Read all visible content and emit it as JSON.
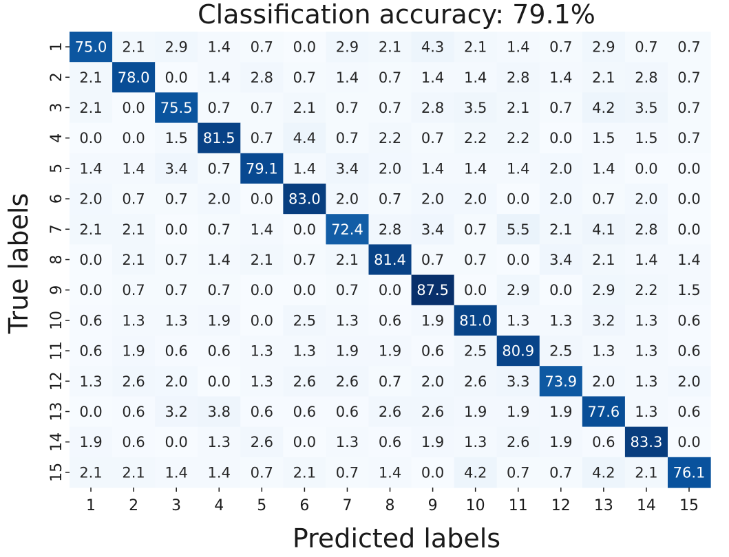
{
  "chart_data": {
    "type": "heatmap",
    "title": "Classification accuracy: 79.1%",
    "xlabel": "Predicted labels",
    "ylabel": "True labels",
    "x_categories": [
      "1",
      "2",
      "3",
      "4",
      "5",
      "6",
      "7",
      "8",
      "9",
      "10",
      "11",
      "12",
      "13",
      "14",
      "15"
    ],
    "y_categories": [
      "1",
      "2",
      "3",
      "4",
      "5",
      "6",
      "7",
      "8",
      "9",
      "10",
      "11",
      "12",
      "13",
      "14",
      "15"
    ],
    "colormap": "Blues",
    "color_low": "#f7fbff",
    "color_high": "#08306b",
    "vmin": 0,
    "vmax": 87.5,
    "values": [
      [
        "75.0",
        "2.1",
        "2.9",
        "1.4",
        "0.7",
        "0.0",
        "2.9",
        "2.1",
        "4.3",
        "2.1",
        "1.4",
        "0.7",
        "2.9",
        "0.7",
        "0.7"
      ],
      [
        "2.1",
        "78.0",
        "0.0",
        "1.4",
        "2.8",
        "0.7",
        "1.4",
        "0.7",
        "1.4",
        "1.4",
        "2.8",
        "1.4",
        "2.1",
        "2.8",
        "0.7"
      ],
      [
        "2.1",
        "0.0",
        "75.5",
        "0.7",
        "0.7",
        "2.1",
        "0.7",
        "0.7",
        "2.8",
        "3.5",
        "2.1",
        "0.7",
        "4.2",
        "3.5",
        "0.7"
      ],
      [
        "0.0",
        "0.0",
        "1.5",
        "81.5",
        "0.7",
        "4.4",
        "0.7",
        "2.2",
        "0.7",
        "2.2",
        "2.2",
        "0.0",
        "1.5",
        "1.5",
        "0.7"
      ],
      [
        "1.4",
        "1.4",
        "3.4",
        "0.7",
        "79.1",
        "1.4",
        "3.4",
        "2.0",
        "1.4",
        "1.4",
        "1.4",
        "2.0",
        "1.4",
        "0.0",
        "0.0"
      ],
      [
        "2.0",
        "0.7",
        "0.7",
        "2.0",
        "0.0",
        "83.0",
        "2.0",
        "0.7",
        "2.0",
        "2.0",
        "0.0",
        "2.0",
        "0.7",
        "2.0",
        "0.0"
      ],
      [
        "2.1",
        "2.1",
        "0.0",
        "0.7",
        "1.4",
        "0.0",
        "72.4",
        "2.8",
        "3.4",
        "0.7",
        "5.5",
        "2.1",
        "4.1",
        "2.8",
        "0.0"
      ],
      [
        "0.0",
        "2.1",
        "0.7",
        "1.4",
        "2.1",
        "0.7",
        "2.1",
        "81.4",
        "0.7",
        "0.7",
        "0.0",
        "3.4",
        "2.1",
        "1.4",
        "1.4"
      ],
      [
        "0.0",
        "0.7",
        "0.7",
        "0.7",
        "0.0",
        "0.0",
        "0.7",
        "0.0",
        "87.5",
        "0.0",
        "2.9",
        "0.0",
        "2.9",
        "2.2",
        "1.5"
      ],
      [
        "0.6",
        "1.3",
        "1.3",
        "1.9",
        "0.0",
        "2.5",
        "1.3",
        "0.6",
        "1.9",
        "81.0",
        "1.3",
        "1.3",
        "3.2",
        "1.3",
        "0.6"
      ],
      [
        "0.6",
        "1.9",
        "0.6",
        "0.6",
        "1.3",
        "1.3",
        "1.9",
        "1.9",
        "0.6",
        "2.5",
        "80.9",
        "2.5",
        "1.3",
        "1.3",
        "0.6"
      ],
      [
        "1.3",
        "2.6",
        "2.0",
        "0.0",
        "1.3",
        "2.6",
        "2.6",
        "0.7",
        "2.0",
        "2.6",
        "3.3",
        "73.9",
        "2.0",
        "1.3",
        "2.0"
      ],
      [
        "0.0",
        "0.6",
        "3.2",
        "3.8",
        "0.6",
        "0.6",
        "0.6",
        "2.6",
        "2.6",
        "1.9",
        "1.9",
        "1.9",
        "77.6",
        "1.3",
        "0.6"
      ],
      [
        "1.9",
        "0.6",
        "0.0",
        "1.3",
        "2.6",
        "0.0",
        "1.3",
        "0.6",
        "1.9",
        "1.3",
        "2.6",
        "1.9",
        "0.6",
        "83.3",
        "0.0"
      ],
      [
        "2.1",
        "2.1",
        "1.4",
        "1.4",
        "0.7",
        "2.1",
        "0.7",
        "1.4",
        "0.0",
        "4.2",
        "0.7",
        "0.7",
        "4.2",
        "2.1",
        "76.1"
      ]
    ],
    "grid": false,
    "legend": "none"
  }
}
